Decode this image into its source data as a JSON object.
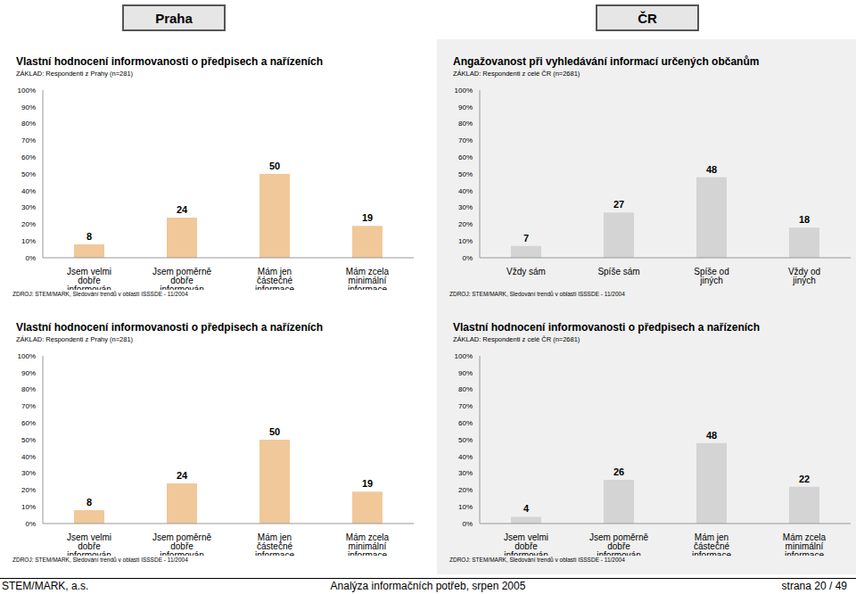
{
  "page": {
    "headers": [
      "Praha",
      "ČR"
    ],
    "footer": [
      "STEM/MARK, a.s.",
      "Analýza informačních potřeb, srpen 2005",
      "strana 20 / 49"
    ]
  },
  "chart_data": [
    {
      "type": "bar",
      "title": "Vlastní hodnocení informovanosti o předpisech a nařízeních",
      "subtitle": "ZÁKLAD: Respondenti z Prahy (n=281)",
      "source": "ZDROJ: STEM/MARK, Sledování trendů v oblasti ISSSDE - 11/2004",
      "categories": [
        "Jsem velmi dobře informován",
        "Jsem poměrně dobře informován",
        "Mám jen částečné informace",
        "Mám zcela minimální informace"
      ],
      "values": [
        8,
        24,
        50,
        19
      ],
      "color": "#f0c89a",
      "data_labels": true,
      "grid": false,
      "ylim": [
        0,
        100
      ],
      "yticks": [
        {
          "value": 0,
          "label": "0%"
        },
        {
          "value": 10,
          "label": "10%"
        },
        {
          "value": 20,
          "label": "20%"
        },
        {
          "value": 30,
          "label": "30%"
        },
        {
          "value": 40,
          "label": "40%"
        },
        {
          "value": 50,
          "label": "50%"
        },
        {
          "value": 60,
          "label": "60%"
        },
        {
          "value": 70,
          "label": "70%"
        },
        {
          "value": 80,
          "label": "80%"
        },
        {
          "value": 90,
          "label": "90%"
        },
        {
          "value": 100,
          "label": "100%"
        }
      ]
    },
    {
      "type": "bar",
      "title": "Angažovanost při vyhledávání informací určených občanům",
      "subtitle": "ZÁKLAD: Respondenti z celé ČR (n=2681)",
      "source": "ZDROJ: STEM/MARK, Sledování trendů v oblasti ISSSDE - 11/2004",
      "categories": [
        "Vždy sám",
        "Spíše sám",
        "Spíše od jiných",
        "Vždy od jiných"
      ],
      "values": [
        7,
        27,
        48,
        18
      ],
      "color": "#d4d4d4",
      "data_labels": true,
      "grid": false,
      "ylim": [
        0,
        100
      ],
      "yticks": [
        {
          "value": 0,
          "label": "0%"
        },
        {
          "value": 10,
          "label": "10%"
        },
        {
          "value": 20,
          "label": "20%"
        },
        {
          "value": 30,
          "label": "30%"
        },
        {
          "value": 40,
          "label": "40%"
        },
        {
          "value": 50,
          "label": "50%"
        },
        {
          "value": 60,
          "label": "60%"
        },
        {
          "value": 70,
          "label": "70%"
        },
        {
          "value": 80,
          "label": "80%"
        },
        {
          "value": 90,
          "label": "90%"
        },
        {
          "value": 100,
          "label": "100%"
        }
      ]
    },
    {
      "type": "bar",
      "title": "Vlastní hodnocení informovanosti o předpisech a nařízeních",
      "subtitle": "ZÁKLAD: Respondenti z Prahy (n=281)",
      "source": "ZDROJ: STEM/MARK, Sledování trendů v oblasti ISSSDE - 11/2004",
      "categories": [
        "Jsem velmi dobře informován",
        "Jsem poměrně dobře informován",
        "Mám jen částečné informace",
        "Mám zcela minimální informace"
      ],
      "values": [
        8,
        24,
        50,
        19
      ],
      "color": "#f0c89a",
      "data_labels": true,
      "grid": false,
      "ylim": [
        0,
        100
      ],
      "yticks": [
        {
          "value": 0,
          "label": "0%"
        },
        {
          "value": 10,
          "label": "10%"
        },
        {
          "value": 20,
          "label": "20%"
        },
        {
          "value": 30,
          "label": "30%"
        },
        {
          "value": 40,
          "label": "40%"
        },
        {
          "value": 50,
          "label": "50%"
        },
        {
          "value": 60,
          "label": "60%"
        },
        {
          "value": 70,
          "label": "70%"
        },
        {
          "value": 80,
          "label": "80%"
        },
        {
          "value": 90,
          "label": "90%"
        },
        {
          "value": 100,
          "label": "100%"
        }
      ]
    },
    {
      "type": "bar",
      "title": "Vlastní hodnocení informovanosti o předpisech a nařízeních",
      "subtitle": "ZÁKLAD: Respondenti z celé ČR (n=2681)",
      "source": "ZDROJ: STEM/MARK, Sledování trendů v oblasti ISSSDE - 11/2004",
      "categories": [
        "Jsem velmi dobře informován",
        "Jsem poměrně dobře informován",
        "Mám jen částečné informace",
        "Mám zcela minimální informace"
      ],
      "values": [
        4,
        26,
        48,
        22
      ],
      "color": "#d4d4d4",
      "data_labels": true,
      "grid": false,
      "ylim": [
        0,
        100
      ],
      "yticks": [
        {
          "value": 0,
          "label": "0%"
        },
        {
          "value": 10,
          "label": "10%"
        },
        {
          "value": 20,
          "label": "20%"
        },
        {
          "value": 30,
          "label": "30%"
        },
        {
          "value": 40,
          "label": "40%"
        },
        {
          "value": 50,
          "label": "50%"
        },
        {
          "value": 60,
          "label": "60%"
        },
        {
          "value": 70,
          "label": "70%"
        },
        {
          "value": 80,
          "label": "80%"
        },
        {
          "value": 90,
          "label": "90%"
        },
        {
          "value": 100,
          "label": "100%"
        }
      ]
    }
  ]
}
